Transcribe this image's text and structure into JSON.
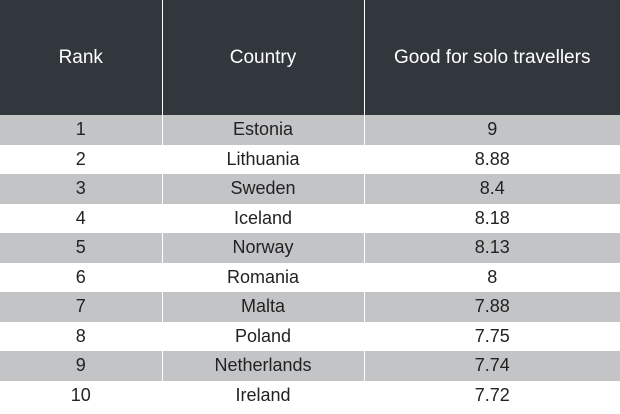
{
  "table": {
    "headers": [
      "Rank",
      "Country",
      "Good for solo travellers"
    ],
    "rows": [
      [
        "1",
        "Estonia",
        "9"
      ],
      [
        "2",
        "Lithuania",
        "8.88"
      ],
      [
        "3",
        "Sweden",
        "8.4"
      ],
      [
        "4",
        "Iceland",
        "8.18"
      ],
      [
        "5",
        "Norway",
        "8.13"
      ],
      [
        "6",
        "Romania",
        "8"
      ],
      [
        "7",
        "Malta",
        "7.88"
      ],
      [
        "8",
        "Poland",
        "7.75"
      ],
      [
        "9",
        "Netherlands",
        "7.74"
      ],
      [
        "10",
        "Ireland",
        "7.72"
      ]
    ]
  }
}
